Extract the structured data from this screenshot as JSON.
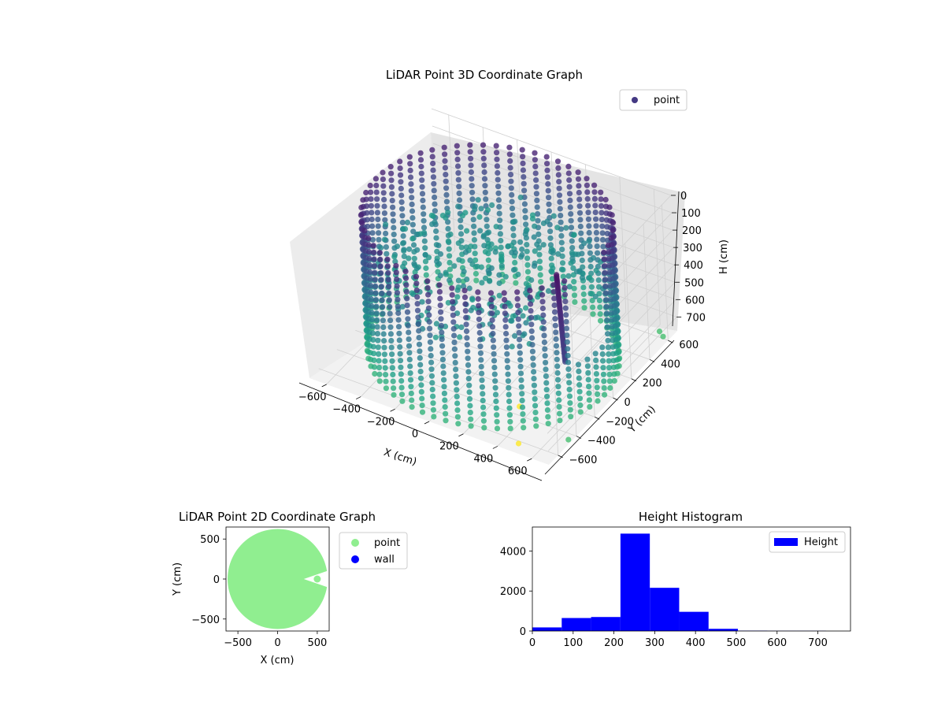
{
  "chart_data": [
    {
      "type": "scatter",
      "projection": "3d",
      "title": "LiDAR Point 3D Coordinate Graph",
      "xlabel": "X (cm)",
      "ylabel": "Y (cm)",
      "zlabel": "H (cm)",
      "xlim": [
        -700,
        700
      ],
      "ylim": [
        -700,
        700
      ],
      "zlim": [
        780,
        0
      ],
      "z_axis_inverted": true,
      "xticks": [
        -600,
        -400,
        -200,
        0,
        200,
        400,
        600
      ],
      "yticks": [
        -600,
        -400,
        -200,
        0,
        200,
        400,
        600
      ],
      "zticks": [
        0,
        100,
        200,
        300,
        400,
        500,
        600,
        700
      ],
      "colormap": "viridis",
      "grid": true,
      "legend": {
        "position": "upper-right",
        "entries": [
          "point"
        ]
      },
      "series": [
        {
          "name": "point",
          "color": "#443983",
          "description_of_shape": "cylindrical wall of radius ~650 cm spanning heights 0-780 cm, with an opening near X 400-600, Y -200 to 0",
          "wall_radius": 650,
          "wall_height_range": [
            0,
            780
          ],
          "outliers": [
            {
              "x": 700,
              "y": 550,
              "h": 730
            },
            {
              "x": 640,
              "y": 620,
              "h": 760
            },
            {
              "x": 330,
              "y": -330,
              "h": 780
            },
            {
              "x": 680,
              "y": -450,
              "h": 780
            },
            {
              "x": 480,
              "y": -620,
              "h": 780
            }
          ]
        }
      ]
    },
    {
      "type": "scatter",
      "title": "LiDAR Point 2D Coordinate Graph",
      "xlabel": "X (cm)",
      "ylabel": "Y (cm)",
      "xlim": [
        -650,
        650
      ],
      "ylim": [
        -650,
        650
      ],
      "xticks": [
        -500,
        0,
        500
      ],
      "yticks": [
        500,
        0,
        -500
      ],
      "legend": {
        "position": "outside-right",
        "entries": [
          "point",
          "wall"
        ]
      },
      "series": [
        {
          "name": "point",
          "color": "#90ee90",
          "shape": "filled disc radius ~630 cm",
          "radius": 630
        },
        {
          "name": "wall",
          "color": "#0000ff",
          "points": []
        }
      ]
    },
    {
      "type": "bar",
      "subtype": "histogram",
      "title": "Height Histogram",
      "xlim": [
        0,
        780
      ],
      "ylim": [
        0,
        5200
      ],
      "xticks": [
        0,
        100,
        200,
        300,
        400,
        500,
        600,
        700
      ],
      "yticks": [
        0,
        2000,
        4000
      ],
      "legend": {
        "position": "upper-right",
        "entries": [
          "Height"
        ]
      },
      "series": [
        {
          "name": "Height",
          "color": "#0000ff",
          "bin_edges": [
            0,
            72,
            144,
            216,
            288,
            360,
            432,
            504,
            576,
            648,
            720
          ],
          "values": [
            180,
            650,
            700,
            4870,
            2160,
            960,
            110,
            20,
            10,
            10
          ]
        }
      ]
    }
  ]
}
